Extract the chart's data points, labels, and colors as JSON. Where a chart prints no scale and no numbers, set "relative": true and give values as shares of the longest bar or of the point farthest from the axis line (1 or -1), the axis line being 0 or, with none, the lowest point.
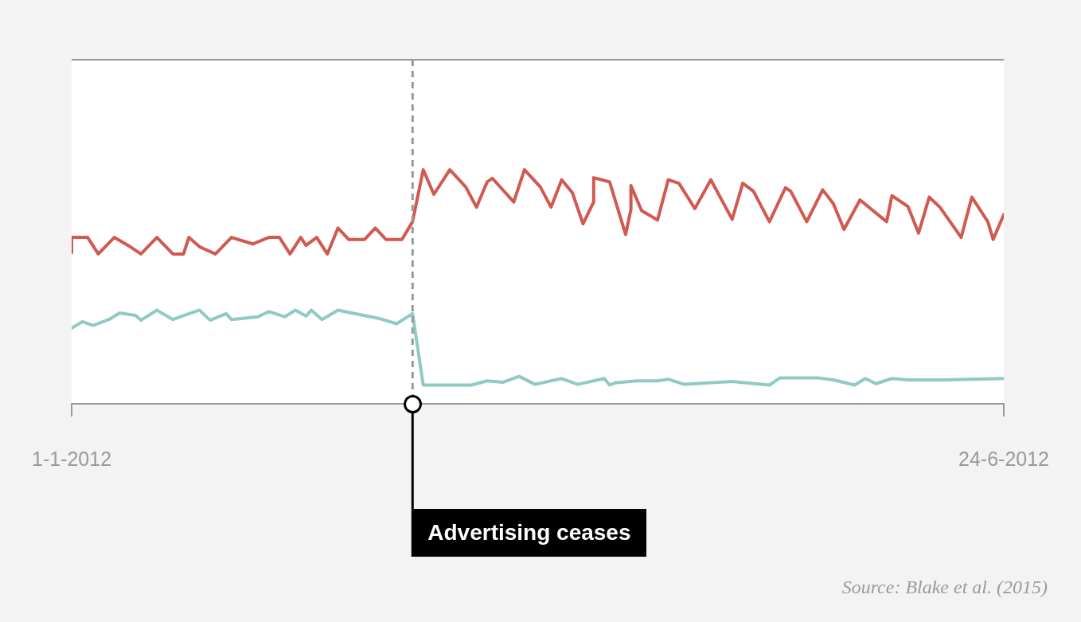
{
  "chart_data": {
    "type": "line",
    "relative": true,
    "grid": false,
    "legend": false,
    "line_style": "solid",
    "xlim": [
      "2012-01-01",
      "2012-06-24"
    ],
    "xticks": [
      {
        "value": "2012-01-01",
        "label": "1-1-2012"
      },
      {
        "value": "2012-06-24",
        "label": "24-6-2012"
      }
    ],
    "series": [
      {
        "color": "#d05a52",
        "x": [
          "2012-01-01",
          "2012-01-01",
          "2012-01-04",
          "2012-01-06",
          "2012-01-09",
          "2012-01-12",
          "2012-01-14",
          "2012-01-17",
          "2012-01-20",
          "2012-01-22",
          "2012-01-23",
          "2012-01-25",
          "2012-01-28",
          "2012-01-31",
          "2012-02-04",
          "2012-02-07",
          "2012-02-09",
          "2012-02-11",
          "2012-02-13",
          "2012-02-14",
          "2012-02-16",
          "2012-02-18",
          "2012-02-20",
          "2012-02-22",
          "2012-02-25",
          "2012-02-27",
          "2012-02-29",
          "2012-03-03",
          "2012-03-05",
          "2012-03-07",
          "2012-03-09",
          "2012-03-12",
          "2012-03-15",
          "2012-03-17",
          "2012-03-19",
          "2012-03-20",
          "2012-03-24",
          "2012-03-26",
          "2012-03-29",
          "2012-03-31",
          "2012-04-02",
          "2012-04-04",
          "2012-04-06",
          "2012-04-08",
          "2012-04-08",
          "2012-04-11",
          "2012-04-14",
          "2012-04-15",
          "2012-04-15",
          "2012-04-17",
          "2012-04-20",
          "2012-04-22",
          "2012-04-24",
          "2012-04-27",
          "2012-04-30",
          "2012-05-04",
          "2012-05-06",
          "2012-05-08",
          "2012-05-11",
          "2012-05-14",
          "2012-05-15",
          "2012-05-18",
          "2012-05-21",
          "2012-05-23",
          "2012-05-25",
          "2012-05-28",
          "2012-06-02",
          "2012-06-03",
          "2012-06-06",
          "2012-06-08",
          "2012-06-10",
          "2012-06-12",
          "2012-06-16",
          "2012-06-18",
          "2012-06-21",
          "2012-06-22",
          "2012-06-24"
        ],
        "values": [
          0.646,
          0.711,
          0.711,
          0.64,
          0.711,
          0.671,
          0.64,
          0.711,
          0.64,
          0.64,
          0.711,
          0.671,
          0.64,
          0.711,
          0.683,
          0.711,
          0.711,
          0.64,
          0.711,
          0.677,
          0.711,
          0.64,
          0.751,
          0.702,
          0.702,
          0.751,
          0.702,
          0.702,
          0.778,
          1,
          0.895,
          1,
          0.926,
          0.84,
          0.948,
          0.963,
          0.862,
          1,
          0.926,
          0.84,
          0.957,
          0.902,
          0.769,
          0.862,
          0.966,
          0.948,
          0.723,
          0.831,
          0.932,
          0.825,
          0.785,
          0.957,
          0.942,
          0.834,
          0.957,
          0.788,
          0.942,
          0.908,
          0.778,
          0.923,
          0.908,
          0.778,
          0.914,
          0.855,
          0.745,
          0.871,
          0.778,
          0.889,
          0.843,
          0.729,
          0.883,
          0.84,
          0.711,
          0.883,
          0.778,
          0.702,
          0.809
        ]
      },
      {
        "color": "#8fcac3",
        "x": [
          "2012-01-01",
          "2012-01-03",
          "2012-01-05",
          "2012-01-08",
          "2012-01-10",
          "2012-01-13",
          "2012-01-14",
          "2012-01-17",
          "2012-01-20",
          "2012-01-23",
          "2012-01-25",
          "2012-01-27",
          "2012-01-30",
          "2012-01-31",
          "2012-02-05",
          "2012-02-07",
          "2012-02-10",
          "2012-02-12",
          "2012-02-14",
          "2012-02-15",
          "2012-02-17",
          "2012-02-20",
          "2012-02-28",
          "2012-03-02",
          "2012-03-05",
          "2012-03-07",
          "2012-03-16",
          "2012-03-19",
          "2012-03-22",
          "2012-03-25",
          "2012-03-28",
          "2012-04-02",
          "2012-04-05",
          "2012-04-10",
          "2012-04-11",
          "2012-04-12",
          "2012-04-16",
          "2012-04-20",
          "2012-04-22",
          "2012-04-25",
          "2012-05-04",
          "2012-05-11",
          "2012-05-13",
          "2012-05-20",
          "2012-05-23",
          "2012-05-27",
          "2012-05-29",
          "2012-05-31",
          "2012-06-03",
          "2012-06-06",
          "2012-06-13",
          "2012-06-24"
        ],
        "values": [
          0.323,
          0.351,
          0.335,
          0.36,
          0.388,
          0.378,
          0.357,
          0.4,
          0.36,
          0.385,
          0.4,
          0.357,
          0.385,
          0.36,
          0.372,
          0.394,
          0.372,
          0.4,
          0.375,
          0.4,
          0.36,
          0.4,
          0.363,
          0.342,
          0.385,
          0.08,
          0.08,
          0.098,
          0.092,
          0.117,
          0.083,
          0.108,
          0.083,
          0.108,
          0.08,
          0.089,
          0.098,
          0.098,
          0.105,
          0.083,
          0.095,
          0.08,
          0.111,
          0.111,
          0.102,
          0.08,
          0.108,
          0.086,
          0.108,
          0.102,
          0.102,
          0.108
        ]
      }
    ],
    "ref_lines": [
      {
        "axis": "x",
        "value": "2012-03-05",
        "label": "Advertising ceases",
        "color": "#999999",
        "line_style": "dashed"
      }
    ],
    "annotations": [
      "Source: Blake et al. (2015)"
    ]
  }
}
